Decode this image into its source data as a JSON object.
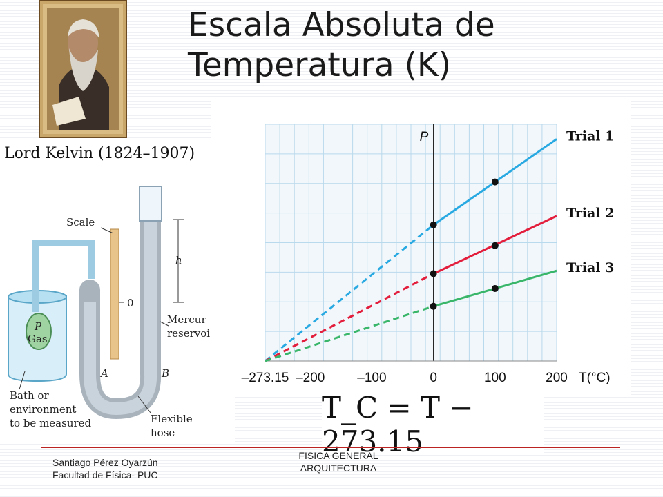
{
  "title": {
    "line1": "Escala Absoluta de",
    "line2": "Temperatura (K)"
  },
  "portrait": {
    "caption": "Lord Kelvin (1824–1907)"
  },
  "apparatus": {
    "labels": {
      "scale": "Scale",
      "h": "h",
      "zero": "0",
      "mercury_1": "Mercur",
      "mercury_2": "reservoi",
      "p": "P",
      "gas": "Gas",
      "a": "A",
      "b": "B",
      "bath_1": "Bath or",
      "bath_2": "environment",
      "bath_3": "to be measured",
      "hose_1": "Flexible",
      "hose_2": "hose"
    }
  },
  "chart_data": {
    "type": "line",
    "ylabel": "P",
    "xlabel": "T(°C)",
    "xlim": [
      -273.15,
      200
    ],
    "x_ticks": [
      "–273.15",
      "–200",
      "–100",
      "0",
      "100",
      "200"
    ],
    "x_tick_values": [
      -273.15,
      -200,
      -100,
      0,
      100,
      200
    ],
    "ylim": [
      0,
      8
    ],
    "grid": true,
    "series": [
      {
        "name": "Trial 1",
        "color": "#29a9e1",
        "points": [
          [
            0,
            4.6
          ],
          [
            100,
            6.05
          ]
        ],
        "extrapolated_to": [
          -273.15,
          0
        ],
        "end": [
          200,
          7.5
        ]
      },
      {
        "name": "Trial 2",
        "color": "#e31e3c",
        "points": [
          [
            0,
            2.95
          ],
          [
            100,
            3.9
          ]
        ],
        "extrapolated_to": [
          -273.15,
          0
        ],
        "end": [
          200,
          4.9
        ]
      },
      {
        "name": "Trial 3",
        "color": "#3ab66a",
        "points": [
          [
            0,
            1.85
          ],
          [
            100,
            2.45
          ]
        ],
        "extrapolated_to": [
          -273.15,
          0
        ],
        "end": [
          200,
          3.05
        ]
      }
    ]
  },
  "formula": "T_C = T − 273.15",
  "footer": {
    "author": "Santiago Pérez Oyarzún",
    "faculty": "Facultad de Física- PUC",
    "course_1": "FISICA GENERAL",
    "course_2": "ARQUITECTURA"
  },
  "colors": {
    "accent_rule": "#bb2222",
    "portrait_bg": "#c9a76a"
  }
}
